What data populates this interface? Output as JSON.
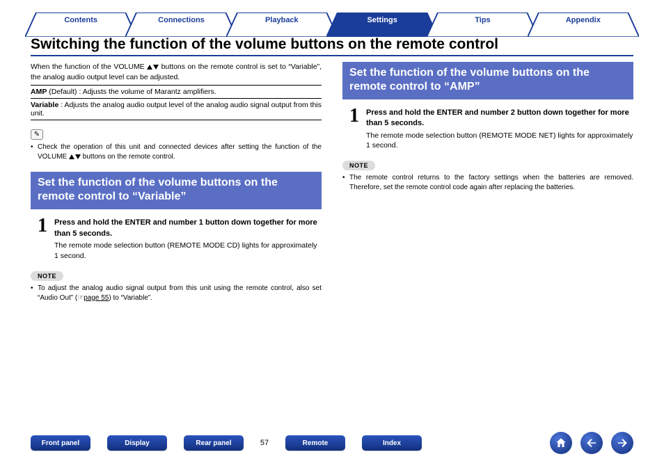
{
  "colors": {
    "brand": "#1b3d9a",
    "section_bar": "#5a6fc4",
    "tab_text": "#1b3d9a",
    "tab_active_bg": "#1b3d9a",
    "nav_btn_grad_top": "#2a53bd",
    "nav_btn_grad_bot": "#12307c"
  },
  "tabs": [
    {
      "label": "Contents",
      "active": false
    },
    {
      "label": "Connections",
      "active": false
    },
    {
      "label": "Playback",
      "active": false
    },
    {
      "label": "Settings",
      "active": true
    },
    {
      "label": "Tips",
      "active": false
    },
    {
      "label": "Appendix",
      "active": false
    }
  ],
  "heading": "Switching the function of the volume buttons on the remote control",
  "left": {
    "intro": "When the function of the VOLUME ▲▼ buttons on the remote control is set to “Variable”, the analog audio output level can be adjusted.",
    "defs": [
      {
        "term": "AMP",
        "suffix": " (Default) : ",
        "desc": "Adjusts the volume of Marantz amplifiers."
      },
      {
        "term": "Variable",
        "suffix": " : ",
        "desc": "Adjusts the analog audio output level of the analog audio signal output from this unit."
      }
    ],
    "pencil_bullet": "Check the operation of this unit and connected devices after setting the function of the VOLUME ▲▼ buttons on the remote control.",
    "section_title": "Set the function of the volume buttons on the remote control to “Variable”",
    "step": {
      "num": "1",
      "title": "Press and hold the ENTER and number 1 button down together for more than 5 seconds.",
      "desc": "The remote mode selection button (REMOTE MODE CD) lights for approximately 1 second."
    },
    "note_label": "NOTE",
    "note_bullet_before": "To adjust the analog audio signal output from this unit using the remote control, also set “Audio Out” (",
    "note_link_icon": "☞",
    "note_link": "page 55",
    "note_bullet_after": ") to “Variable”."
  },
  "right": {
    "section_title": "Set the function of the volume buttons on the remote control to “AMP”",
    "step": {
      "num": "1",
      "title": "Press and hold the ENTER and number 2 button down together for more than 5 seconds.",
      "desc": "The remote mode selection button (REMOTE MODE NET) lights for approximately 1 second."
    },
    "note_label": "NOTE",
    "note_bullet": "The remote control returns to the factory settings when the batteries are removed. Therefore, set the remote control code again after replacing the batteries."
  },
  "bottom": {
    "left_buttons": [
      "Front panel",
      "Display",
      "Rear panel"
    ],
    "page_num": "57",
    "right_buttons": [
      "Remote",
      "Index"
    ],
    "icons": [
      "home",
      "prev",
      "next"
    ]
  }
}
